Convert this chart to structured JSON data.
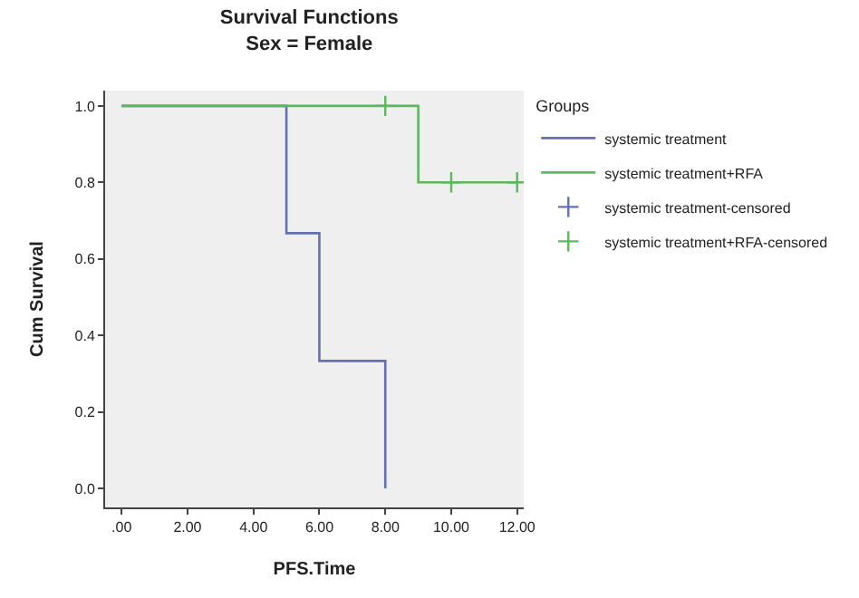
{
  "chart_data": {
    "type": "step",
    "title": "Survival Functions",
    "subtitle": "Sex = Female",
    "xlabel": "PFS.Time",
    "ylabel": "Cum Survival",
    "legend_title": "Groups",
    "legend": "right",
    "series": [
      {
        "name": "systemic treatment",
        "color": "#6470b0",
        "x": [
          0,
          5,
          6,
          8
        ],
        "values": [
          1.0,
          0.667,
          0.333,
          0.0
        ],
        "marker": "none"
      },
      {
        "name": "systemic treatment+RFA",
        "color": "#5cb85c",
        "x": [
          0,
          9,
          12
        ],
        "values": [
          1.0,
          0.8,
          0.8
        ],
        "marker": "none"
      },
      {
        "name": "systemic treatment-censored",
        "type": "scatter",
        "color": "#6470b0",
        "marker": "cross"
      },
      {
        "name": "systemic treatment+RFA-censored",
        "type": "scatter",
        "color": "#5cb85c",
        "x": [
          8,
          10,
          12
        ],
        "values": [
          1.0,
          0.8,
          0.8
        ],
        "marker": "cross"
      }
    ],
    "xlim": [
      -0.5,
      12.2
    ],
    "ylim": [
      -0.05,
      1.04
    ],
    "xticks": [
      {
        "value": 0,
        "label": ".00"
      },
      {
        "value": 2,
        "label": "2.00"
      },
      {
        "value": 4,
        "label": "4.00"
      },
      {
        "value": 6,
        "label": "6.00"
      },
      {
        "value": 8,
        "label": "8.00"
      },
      {
        "value": 10,
        "label": "10.00"
      },
      {
        "value": 12,
        "label": "12.00"
      }
    ],
    "yticks": [
      {
        "value": 0,
        "label": "0.0"
      },
      {
        "value": 0.2,
        "label": "0.2"
      },
      {
        "value": 0.4,
        "label": "0.4"
      },
      {
        "value": 0.6,
        "label": "0.6"
      },
      {
        "value": 0.8,
        "label": "0.8"
      },
      {
        "value": 1.0,
        "label": "1.0"
      }
    ],
    "grid": false
  }
}
